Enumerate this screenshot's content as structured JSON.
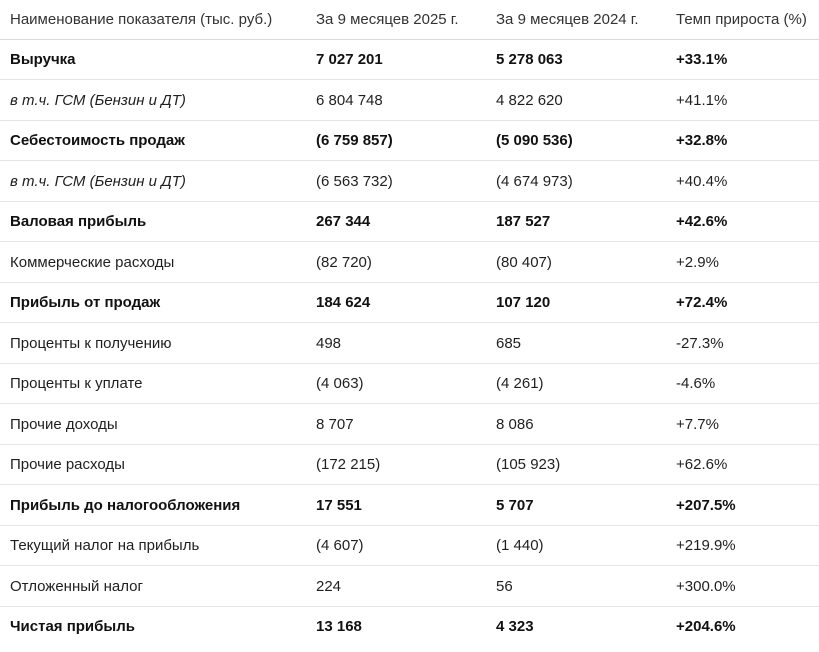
{
  "table": {
    "headers": [
      "Наименование показателя (тыс. руб.)",
      "За 9 месяцев 2025 г.",
      "За 9 месяцев 2024 г.",
      "Темп прироста (%)"
    ],
    "rows": [
      {
        "label": "Выручка",
        "v2025": "7 027 201",
        "v2024": "5 278 063",
        "growth": "+33.1%",
        "style": "bold"
      },
      {
        "label": "в т.ч. ГСМ (Бензин и ДТ)",
        "v2025": "6 804 748",
        "v2024": "4 822 620",
        "growth": "+41.1%",
        "style": "italic"
      },
      {
        "label": "Себестоимость продаж",
        "v2025": "(6 759 857)",
        "v2024": "(5 090 536)",
        "growth": "+32.8%",
        "style": "bold"
      },
      {
        "label": "в т.ч. ГСМ (Бензин и ДТ)",
        "v2025": "(6 563 732)",
        "v2024": "(4 674 973)",
        "growth": "+40.4%",
        "style": "italic"
      },
      {
        "label": "Валовая прибыль",
        "v2025": "267 344",
        "v2024": "187 527",
        "growth": "+42.6%",
        "style": "bold"
      },
      {
        "label": "Коммерческие расходы",
        "v2025": "(82 720)",
        "v2024": "(80 407)",
        "growth": "+2.9%",
        "style": "normal"
      },
      {
        "label": "Прибыль от продаж",
        "v2025": "184 624",
        "v2024": "107 120",
        "growth": "+72.4%",
        "style": "bold"
      },
      {
        "label": "Проценты к получению",
        "v2025": "498",
        "v2024": "685",
        "growth": "-27.3%",
        "style": "normal"
      },
      {
        "label": "Проценты к уплате",
        "v2025": "(4 063)",
        "v2024": "(4 261)",
        "growth": "-4.6%",
        "style": "normal"
      },
      {
        "label": "Прочие доходы",
        "v2025": "8 707",
        "v2024": "8 086",
        "growth": "+7.7%",
        "style": "normal"
      },
      {
        "label": "Прочие расходы",
        "v2025": "(172 215)",
        "v2024": "(105 923)",
        "growth": "+62.6%",
        "style": "normal"
      },
      {
        "label": "Прибыль до налогообложения",
        "v2025": "17 551",
        "v2024": "5 707",
        "growth": "+207.5%",
        "style": "bold"
      },
      {
        "label": "Текущий налог на прибыль",
        "v2025": "(4 607)",
        "v2024": "(1 440)",
        "growth": "+219.9%",
        "style": "normal"
      },
      {
        "label": "Отложенный налог",
        "v2025": "224",
        "v2024": "56",
        "growth": "+300.0%",
        "style": "normal"
      },
      {
        "label": "Чистая прибыль",
        "v2025": "13 168",
        "v2024": "4 323",
        "growth": "+204.6%",
        "style": "bold"
      }
    ]
  }
}
